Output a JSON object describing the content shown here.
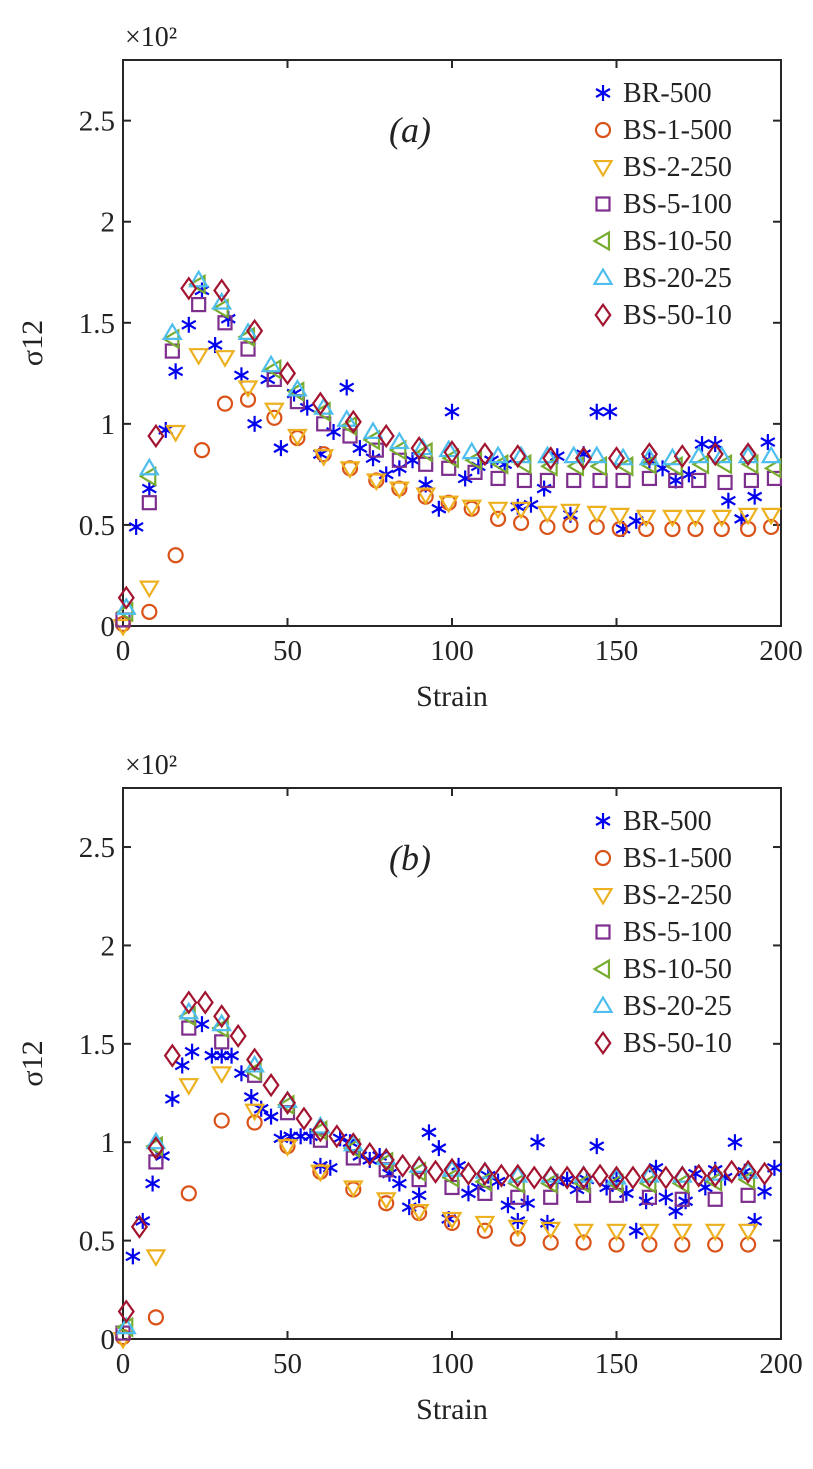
{
  "figure": {
    "panel_count": 2
  },
  "chart_data": [
    {
      "type": "scatter",
      "panel_label": "(a)",
      "title": "",
      "xlabel": "Strain",
      "ylabel": "σ12",
      "y_multiplier": "×10²",
      "xlim": [
        0,
        200
      ],
      "ylim": [
        0,
        2.8
      ],
      "x_ticks": [
        0,
        50,
        100,
        150,
        200
      ],
      "x_tick_labels": [
        "0",
        "50",
        "100",
        "150",
        "200"
      ],
      "y_ticks": [
        0,
        0.5,
        1,
        1.5,
        2,
        2.5
      ],
      "y_tick_labels": [
        "0",
        "0.5",
        "1",
        "1.5",
        "2",
        "2.5"
      ],
      "grid": false,
      "legend_position": "top-right",
      "series": [
        {
          "name": "BR-500",
          "marker": "asterisk",
          "color": "#0000ee",
          "x": [
            4,
            8,
            13,
            16,
            20,
            24,
            28,
            32,
            36,
            40,
            44,
            48,
            52,
            56,
            60,
            64,
            68,
            72,
            76,
            80,
            84,
            88,
            92,
            96,
            100,
            104,
            108,
            112,
            116,
            120,
            124,
            128,
            132,
            136,
            140,
            144,
            148,
            152,
            156,
            160,
            164,
            168,
            172,
            176,
            180,
            184,
            188,
            192,
            196
          ],
          "y": [
            0.49,
            0.68,
            0.97,
            1.26,
            1.49,
            1.66,
            1.39,
            1.52,
            1.24,
            1.0,
            1.22,
            0.88,
            1.15,
            1.08,
            0.85,
            0.96,
            1.18,
            0.88,
            0.83,
            0.75,
            0.78,
            0.82,
            0.7,
            0.58,
            1.06,
            0.73,
            0.79,
            0.82,
            0.8,
            0.59,
            0.6,
            0.68,
            0.84,
            0.55,
            0.85,
            1.06,
            1.06,
            0.48,
            0.52,
            0.82,
            0.78,
            0.72,
            0.75,
            0.9,
            0.9,
            0.62,
            0.53,
            0.64,
            0.91
          ]
        },
        {
          "name": "BS-1-500",
          "marker": "circle",
          "color": "#d95319",
          "x": [
            0,
            8,
            16,
            24,
            31,
            38,
            46,
            53,
            61,
            69,
            77,
            84,
            92,
            99,
            106,
            114,
            121,
            129,
            136,
            144,
            151,
            159,
            167,
            174,
            182,
            190,
            197
          ],
          "y": [
            0.01,
            0.07,
            0.35,
            0.87,
            1.1,
            1.12,
            1.03,
            0.93,
            0.85,
            0.78,
            0.72,
            0.68,
            0.64,
            0.61,
            0.58,
            0.53,
            0.51,
            0.49,
            0.5,
            0.49,
            0.48,
            0.48,
            0.48,
            0.48,
            0.48,
            0.48,
            0.49
          ]
        },
        {
          "name": "BS-2-250",
          "marker": "triangle-down",
          "color": "#edb120",
          "x": [
            0,
            8,
            16,
            23,
            31,
            38,
            46,
            53,
            61,
            69,
            77,
            84,
            92,
            99,
            106,
            114,
            121,
            129,
            136,
            144,
            151,
            159,
            167,
            174,
            182,
            190,
            197
          ],
          "y": [
            0.0,
            0.19,
            0.96,
            1.34,
            1.33,
            1.18,
            1.07,
            0.94,
            0.84,
            0.78,
            0.72,
            0.68,
            0.65,
            0.61,
            0.59,
            0.58,
            0.58,
            0.56,
            0.57,
            0.56,
            0.55,
            0.54,
            0.54,
            0.54,
            0.54,
            0.55,
            0.55
          ]
        },
        {
          "name": "BS-5-100",
          "marker": "square",
          "color": "#7e2f8e",
          "x": [
            0,
            8,
            15,
            23,
            31,
            38,
            46,
            53,
            61,
            69,
            77,
            84,
            92,
            99,
            107,
            114,
            122,
            129,
            137,
            145,
            152,
            160,
            168,
            175,
            183,
            191,
            198
          ],
          "y": [
            0.03,
            0.61,
            1.36,
            1.59,
            1.5,
            1.37,
            1.22,
            1.11,
            1.0,
            0.94,
            0.87,
            0.82,
            0.8,
            0.78,
            0.76,
            0.73,
            0.72,
            0.72,
            0.72,
            0.72,
            0.72,
            0.73,
            0.72,
            0.72,
            0.71,
            0.72,
            0.73
          ]
        },
        {
          "name": "BS-10-50",
          "marker": "triangle-left",
          "color": "#77ac30",
          "x": [
            1,
            8,
            15,
            23,
            30,
            38,
            46,
            53,
            61,
            69,
            76,
            84,
            92,
            100,
            107,
            115,
            122,
            130,
            138,
            145,
            153,
            160,
            168,
            176,
            183,
            191,
            198
          ],
          "y": [
            0.07,
            0.74,
            1.42,
            1.69,
            1.57,
            1.43,
            1.27,
            1.16,
            1.06,
            0.99,
            0.92,
            0.87,
            0.86,
            0.83,
            0.82,
            0.8,
            0.8,
            0.79,
            0.79,
            0.79,
            0.79,
            0.8,
            0.79,
            0.8,
            0.8,
            0.8,
            0.78
          ]
        },
        {
          "name": "BS-20-25",
          "marker": "triangle-up",
          "color": "#4dbeee",
          "x": [
            1,
            8,
            15,
            23,
            30,
            38,
            45,
            53,
            61,
            68,
            76,
            84,
            91,
            99,
            106,
            114,
            121,
            129,
            137,
            144,
            152,
            160,
            167,
            175,
            182,
            190,
            197
          ],
          "y": [
            0.09,
            0.78,
            1.45,
            1.71,
            1.6,
            1.45,
            1.29,
            1.17,
            1.08,
            1.02,
            0.96,
            0.91,
            0.88,
            0.87,
            0.86,
            0.84,
            0.84,
            0.84,
            0.84,
            0.84,
            0.83,
            0.83,
            0.83,
            0.84,
            0.84,
            0.84,
            0.84
          ]
        },
        {
          "name": "BS-50-10",
          "marker": "diamond",
          "color": "#a2142f",
          "x": [
            1,
            10,
            20,
            30,
            40,
            50,
            60,
            70,
            80,
            90,
            100,
            110,
            120,
            130,
            140,
            150,
            160,
            170,
            180,
            190
          ],
          "y": [
            0.14,
            0.94,
            1.67,
            1.66,
            1.46,
            1.25,
            1.1,
            1.01,
            0.94,
            0.88,
            0.86,
            0.85,
            0.84,
            0.83,
            0.83,
            0.83,
            0.85,
            0.84,
            0.85,
            0.85
          ]
        }
      ]
    },
    {
      "type": "scatter",
      "panel_label": "(b)",
      "title": "",
      "xlabel": "Strain",
      "ylabel": "σ12",
      "y_multiplier": "×10²",
      "xlim": [
        0,
        200
      ],
      "ylim": [
        0,
        2.8
      ],
      "x_ticks": [
        0,
        50,
        100,
        150,
        200
      ],
      "x_tick_labels": [
        "0",
        "50",
        "100",
        "150",
        "200"
      ],
      "y_ticks": [
        0,
        0.5,
        1,
        1.5,
        2,
        2.5
      ],
      "y_tick_labels": [
        "0",
        "0.5",
        "1",
        "1.5",
        "2",
        "2.5"
      ],
      "grid": false,
      "legend_position": "top-right",
      "series": [
        {
          "name": "BR-500",
          "marker": "asterisk",
          "color": "#0000ee",
          "x": [
            3,
            6,
            9,
            12,
            15,
            18,
            21,
            24,
            27,
            30,
            33,
            36,
            39,
            42,
            45,
            48,
            51,
            54,
            57,
            60,
            63,
            66,
            69,
            72,
            75,
            78,
            81,
            84,
            87,
            90,
            93,
            96,
            99,
            102,
            105,
            108,
            111,
            114,
            117,
            120,
            123,
            126,
            129,
            132,
            135,
            138,
            141,
            144,
            147,
            150,
            153,
            156,
            159,
            162,
            165,
            168,
            171,
            174,
            177,
            180,
            183,
            186,
            189,
            192,
            195,
            198
          ],
          "y": [
            0.42,
            0.6,
            0.79,
            0.93,
            1.22,
            1.39,
            1.46,
            1.6,
            1.44,
            1.44,
            1.44,
            1.35,
            1.23,
            1.17,
            1.13,
            1.02,
            1.03,
            1.03,
            1.03,
            0.88,
            0.87,
            1.02,
            1.0,
            0.93,
            0.91,
            0.93,
            0.84,
            0.79,
            0.67,
            0.73,
            1.05,
            0.97,
            0.61,
            0.88,
            0.74,
            0.77,
            0.83,
            0.8,
            0.68,
            0.6,
            0.69,
            1.0,
            0.59,
            0.8,
            0.81,
            0.76,
            0.81,
            0.98,
            0.77,
            0.81,
            0.74,
            0.55,
            0.7,
            0.87,
            0.72,
            0.65,
            0.7,
            0.84,
            0.77,
            0.86,
            0.82,
            1.0,
            0.85,
            0.6,
            0.75,
            0.87
          ]
        },
        {
          "name": "BS-1-500",
          "marker": "circle",
          "color": "#d95319",
          "x": [
            0,
            10,
            20,
            30,
            40,
            50,
            60,
            70,
            80,
            90,
            100,
            110,
            120,
            130,
            140,
            150,
            160,
            170,
            180,
            190
          ],
          "y": [
            0.01,
            0.11,
            0.74,
            1.11,
            1.1,
            0.98,
            0.85,
            0.76,
            0.69,
            0.64,
            0.59,
            0.55,
            0.51,
            0.49,
            0.49,
            0.48,
            0.48,
            0.48,
            0.48,
            0.48
          ]
        },
        {
          "name": "BS-2-250",
          "marker": "triangle-down",
          "color": "#edb120",
          "x": [
            0,
            10,
            20,
            30,
            40,
            50,
            60,
            70,
            80,
            90,
            100,
            110,
            120,
            130,
            140,
            150,
            160,
            170,
            180,
            190
          ],
          "y": [
            0.0,
            0.42,
            1.29,
            1.35,
            1.16,
            0.98,
            0.85,
            0.77,
            0.71,
            0.65,
            0.61,
            0.59,
            0.57,
            0.56,
            0.55,
            0.55,
            0.55,
            0.55,
            0.55,
            0.55
          ]
        },
        {
          "name": "BS-5-100",
          "marker": "square",
          "color": "#7e2f8e",
          "x": [
            0,
            10,
            20,
            30,
            40,
            50,
            60,
            70,
            80,
            90,
            100,
            110,
            120,
            130,
            140,
            150,
            160,
            170,
            180,
            190
          ],
          "y": [
            0.03,
            0.9,
            1.58,
            1.51,
            1.34,
            1.15,
            1.01,
            0.92,
            0.86,
            0.81,
            0.77,
            0.74,
            0.72,
            0.72,
            0.73,
            0.73,
            0.72,
            0.71,
            0.71,
            0.73
          ]
        },
        {
          "name": "BS-10-50",
          "marker": "triangle-left",
          "color": "#77ac30",
          "x": [
            1,
            10,
            20,
            30,
            40,
            50,
            60,
            70,
            80,
            90,
            100,
            110,
            120,
            130,
            140,
            150,
            160,
            170,
            180,
            190
          ],
          "y": [
            0.06,
            0.98,
            1.64,
            1.58,
            1.36,
            1.19,
            1.06,
            0.97,
            0.9,
            0.85,
            0.82,
            0.8,
            0.79,
            0.79,
            0.79,
            0.79,
            0.79,
            0.79,
            0.8,
            0.81
          ]
        },
        {
          "name": "BS-20-25",
          "marker": "triangle-up",
          "color": "#4dbeee",
          "x": [
            1,
            10,
            20,
            30,
            40,
            50,
            60,
            70,
            80,
            90,
            100,
            110,
            120,
            130,
            140,
            150,
            160,
            170,
            180,
            190
          ],
          "y": [
            0.06,
            1.0,
            1.66,
            1.6,
            1.39,
            1.21,
            1.08,
            0.99,
            0.92,
            0.88,
            0.86,
            0.85,
            0.83,
            0.83,
            0.83,
            0.82,
            0.83,
            0.83,
            0.84,
            0.85
          ]
        },
        {
          "name": "BS-50-10",
          "marker": "diamond",
          "color": "#a2142f",
          "x": [
            1,
            5,
            10,
            15,
            20,
            25,
            30,
            35,
            40,
            45,
            50,
            55,
            60,
            65,
            70,
            75,
            80,
            85,
            90,
            95,
            100,
            105,
            110,
            115,
            120,
            125,
            130,
            135,
            140,
            145,
            150,
            155,
            160,
            165,
            170,
            175,
            180,
            185,
            190,
            195
          ],
          "y": [
            0.14,
            0.57,
            0.97,
            1.44,
            1.71,
            1.71,
            1.64,
            1.54,
            1.42,
            1.29,
            1.2,
            1.12,
            1.06,
            1.03,
            0.99,
            0.94,
            0.91,
            0.88,
            0.87,
            0.85,
            0.86,
            0.84,
            0.84,
            0.83,
            0.83,
            0.82,
            0.82,
            0.82,
            0.82,
            0.83,
            0.82,
            0.82,
            0.83,
            0.82,
            0.82,
            0.83,
            0.83,
            0.85,
            0.85,
            0.84
          ]
        }
      ]
    }
  ]
}
